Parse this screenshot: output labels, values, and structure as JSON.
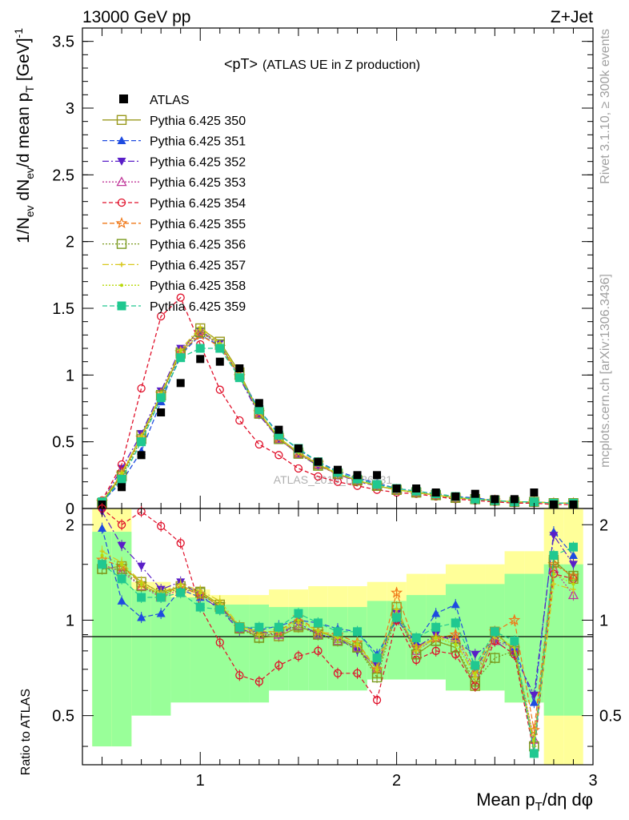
{
  "header": {
    "left": "13000 GeV pp",
    "right": "Z+Jet"
  },
  "side_labels": {
    "rivet": "Rivet 3.1.10, ≥ 300k events",
    "mcplots": "mcplots.cern.ch [arXiv:1306.3436]"
  },
  "chart_data": {
    "type": "line",
    "title": "<pT>",
    "subtitle": "(ATLAS UE in Z production)",
    "watermark": "ATLAS_2019_I1736531",
    "xlabel": "Mean p_T/dη dφ",
    "ylabel_top": "1/N_ev dN_ev/d mean p_T [GeV]^-1",
    "ylabel_bottom": "Ratio to ATLAS",
    "xlim": [
      0.4,
      3.0
    ],
    "ylim_top": [
      0,
      3.6
    ],
    "ylim_bottom": [
      0.35,
      2.25
    ],
    "x_ticks": [
      1,
      2,
      3
    ],
    "y_ticks_top": [
      0,
      0.5,
      1,
      1.5,
      2,
      2.5,
      3,
      3.5
    ],
    "y_ticks_bottom": [
      0.5,
      1,
      2
    ],
    "x": [
      0.5,
      0.6,
      0.7,
      0.8,
      0.9,
      1.0,
      1.1,
      1.2,
      1.3,
      1.4,
      1.5,
      1.6,
      1.7,
      1.8,
      1.9,
      2.0,
      2.1,
      2.2,
      2.3,
      2.4,
      2.5,
      2.6,
      2.7,
      2.8,
      2.9
    ],
    "data": {
      "name": "ATLAS",
      "values": [
        0.03,
        0.16,
        0.4,
        0.72,
        0.94,
        1.12,
        1.1,
        1.05,
        0.79,
        0.59,
        0.45,
        0.35,
        0.29,
        0.25,
        0.25,
        0.15,
        0.15,
        0.12,
        0.09,
        0.11,
        0.07,
        0.07,
        0.12,
        0.03,
        0.03
      ],
      "band_inner": [
        [
          0.4,
          1.9
        ],
        [
          0.5,
          1.25
        ],
        [
          0.55,
          1.18
        ],
        [
          0.55,
          1.12
        ],
        [
          0.6,
          1.1
        ],
        [
          0.6,
          1.1
        ],
        [
          0.65,
          1.15
        ],
        [
          0.65,
          1.2
        ],
        [
          0.6,
          1.3
        ],
        [
          0.55,
          1.4
        ],
        [
          0.5,
          1.5
        ]
      ],
      "band_outer": [
        [
          0.4,
          2.25
        ],
        [
          0.6,
          1.32
        ],
        [
          0.7,
          1.25
        ],
        [
          0.75,
          1.2
        ],
        [
          0.8,
          1.25
        ],
        [
          0.8,
          1.28
        ],
        [
          0.78,
          1.32
        ],
        [
          0.72,
          1.4
        ],
        [
          0.6,
          1.5
        ],
        [
          0.55,
          1.65
        ],
        [
          0.35,
          2.25
        ]
      ]
    },
    "series": [
      {
        "name": "Pythia 6.425 350",
        "color": "#9a9a1e",
        "marker": "square-open",
        "dash": "",
        "values": [
          0.04,
          0.25,
          0.55,
          0.85,
          1.17,
          1.35,
          1.25,
          1.02,
          0.72,
          0.53,
          0.42,
          0.33,
          0.26,
          0.21,
          0.17,
          0.14,
          0.12,
          0.1,
          0.08,
          0.07,
          0.06,
          0.05,
          0.05,
          0.04,
          0.04
        ],
        "ratio": [
          1.45,
          1.48,
          1.32,
          1.22,
          1.28,
          1.23,
          1.12,
          0.95,
          0.88,
          0.89,
          0.95,
          0.92,
          0.88,
          0.82,
          0.68,
          1.1,
          0.78,
          0.86,
          0.82,
          0.62,
          0.92,
          0.8,
          0.4,
          1.55,
          1.35
        ]
      },
      {
        "name": "Pythia 6.425 351",
        "color": "#1e4be0",
        "marker": "triangle-up",
        "dash": "6,3",
        "values": [
          0.05,
          0.2,
          0.43,
          0.8,
          1.15,
          1.3,
          1.22,
          1.0,
          0.74,
          0.56,
          0.44,
          0.35,
          0.28,
          0.23,
          0.19,
          0.15,
          0.13,
          0.11,
          0.09,
          0.08,
          0.06,
          0.05,
          0.05,
          0.04,
          0.04
        ],
        "ratio": [
          1.95,
          1.15,
          1.02,
          1.05,
          1.25,
          1.18,
          1.1,
          0.96,
          0.93,
          0.96,
          1.0,
          0.98,
          0.94,
          0.92,
          0.78,
          1.0,
          0.85,
          1.05,
          1.12,
          0.7,
          0.88,
          0.82,
          0.55,
          1.9,
          1.6
        ]
      },
      {
        "name": "Pythia 6.425 352",
        "color": "#5a1ec8",
        "marker": "triangle-down",
        "dash": "8,3,2,3",
        "values": [
          0.05,
          0.3,
          0.56,
          0.88,
          1.2,
          1.33,
          1.24,
          0.98,
          0.7,
          0.52,
          0.41,
          0.32,
          0.26,
          0.2,
          0.17,
          0.14,
          0.12,
          0.1,
          0.08,
          0.07,
          0.06,
          0.05,
          0.05,
          0.04,
          0.04
        ],
        "ratio": [
          2.2,
          1.72,
          1.48,
          1.25,
          1.32,
          1.2,
          1.08,
          0.93,
          0.92,
          0.9,
          0.98,
          0.9,
          0.88,
          0.8,
          0.72,
          1.05,
          0.82,
          0.9,
          0.86,
          0.78,
          0.86,
          0.78,
          0.58,
          1.85,
          1.5
        ]
      },
      {
        "name": "Pythia 6.425 353",
        "color": "#c0389a",
        "marker": "triangle-up-open",
        "dash": "2,2",
        "values": [
          0.04,
          0.24,
          0.52,
          0.84,
          1.18,
          1.33,
          1.22,
          1.0,
          0.71,
          0.52,
          0.41,
          0.33,
          0.25,
          0.21,
          0.17,
          0.14,
          0.12,
          0.1,
          0.08,
          0.07,
          0.06,
          0.05,
          0.05,
          0.04,
          0.04
        ],
        "ratio": [
          1.5,
          1.42,
          1.28,
          1.18,
          1.25,
          1.22,
          1.1,
          0.94,
          0.9,
          0.9,
          0.96,
          0.9,
          0.86,
          0.82,
          0.7,
          1.05,
          0.8,
          0.88,
          0.88,
          0.68,
          0.86,
          0.82,
          0.42,
          1.45,
          1.2
        ]
      },
      {
        "name": "Pythia 6.425 354",
        "color": "#e0102a",
        "marker": "circle-open",
        "dash": "5,3",
        "values": [
          0.06,
          0.33,
          0.9,
          1.44,
          1.58,
          1.23,
          0.89,
          0.66,
          0.48,
          0.4,
          0.3,
          0.24,
          0.2,
          0.17,
          0.14,
          0.12,
          0.11,
          0.09,
          0.07,
          0.06,
          0.05,
          0.04,
          0.04,
          0.03,
          0.03
        ],
        "ratio": [
          2.35,
          2.0,
          2.2,
          1.98,
          1.75,
          1.1,
          0.85,
          0.67,
          0.64,
          0.72,
          0.77,
          0.8,
          0.68,
          0.68,
          0.56,
          1.0,
          0.75,
          0.8,
          0.78,
          0.62,
          0.86,
          0.78,
          0.38,
          1.4,
          1.35
        ]
      },
      {
        "name": "Pythia 6.425 355",
        "color": "#f07818",
        "marker": "star-open",
        "dash": "6,3",
        "values": [
          0.05,
          0.26,
          0.53,
          0.86,
          1.17,
          1.3,
          1.21,
          0.99,
          0.72,
          0.53,
          0.42,
          0.34,
          0.26,
          0.21,
          0.17,
          0.14,
          0.12,
          0.1,
          0.08,
          0.07,
          0.06,
          0.05,
          0.05,
          0.04,
          0.04
        ],
        "ratio": [
          1.55,
          1.48,
          1.3,
          1.2,
          1.28,
          1.2,
          1.12,
          0.95,
          0.92,
          0.92,
          1.02,
          0.92,
          0.9,
          0.85,
          0.7,
          1.22,
          0.82,
          0.88,
          0.9,
          0.7,
          0.92,
          1.0,
          0.45,
          1.5,
          1.38
        ]
      },
      {
        "name": "Pythia 6.425 356",
        "color": "#7a9a1e",
        "marker": "square-open",
        "dash": "2,2",
        "values": [
          0.04,
          0.24,
          0.52,
          0.85,
          1.16,
          1.32,
          1.23,
          1.0,
          0.71,
          0.52,
          0.41,
          0.32,
          0.26,
          0.21,
          0.17,
          0.14,
          0.12,
          0.1,
          0.08,
          0.07,
          0.06,
          0.05,
          0.05,
          0.04,
          0.04
        ],
        "ratio": [
          1.45,
          1.45,
          1.28,
          1.2,
          1.26,
          1.22,
          1.1,
          0.94,
          0.88,
          0.92,
          0.96,
          0.9,
          0.86,
          0.82,
          0.66,
          1.05,
          0.78,
          0.86,
          0.82,
          0.64,
          0.76,
          0.8,
          0.4,
          1.52,
          1.38
        ]
      },
      {
        "name": "Pythia 6.425 357",
        "color": "#d8c81e",
        "marker": "tick",
        "dash": "8,3,2,3",
        "values": [
          0.05,
          0.27,
          0.54,
          0.86,
          1.19,
          1.36,
          1.24,
          1.01,
          0.72,
          0.53,
          0.42,
          0.33,
          0.26,
          0.21,
          0.17,
          0.14,
          0.12,
          0.1,
          0.08,
          0.07,
          0.06,
          0.05,
          0.05,
          0.04,
          0.04
        ],
        "ratio": [
          1.65,
          1.52,
          1.32,
          1.22,
          1.3,
          1.24,
          1.15,
          0.96,
          0.9,
          0.92,
          0.98,
          0.93,
          0.88,
          0.84,
          0.7,
          1.08,
          0.8,
          0.88,
          0.86,
          0.66,
          0.88,
          0.82,
          0.4,
          1.3,
          1.25
        ]
      },
      {
        "name": "Pythia 6.425 358",
        "color": "#b8d80a",
        "marker": "dot",
        "dash": "2,2",
        "values": [
          0.05,
          0.26,
          0.53,
          0.86,
          1.18,
          1.34,
          1.23,
          1.0,
          0.72,
          0.53,
          0.42,
          0.33,
          0.26,
          0.21,
          0.17,
          0.14,
          0.12,
          0.1,
          0.08,
          0.07,
          0.06,
          0.05,
          0.05,
          0.04,
          0.04
        ],
        "ratio": [
          1.6,
          1.5,
          1.3,
          1.2,
          1.28,
          1.22,
          1.12,
          0.96,
          0.92,
          0.92,
          1.0,
          0.92,
          0.88,
          0.84,
          0.7,
          1.05,
          0.82,
          0.88,
          0.84,
          0.68,
          0.9,
          0.82,
          0.42,
          1.4,
          1.3
        ]
      },
      {
        "name": "Pythia 6.425 359",
        "color": "#20c890",
        "marker": "square",
        "dash": "6,3",
        "values": [
          0.05,
          0.22,
          0.5,
          0.83,
          1.13,
          1.2,
          1.2,
          0.98,
          0.74,
          0.55,
          0.45,
          0.35,
          0.27,
          0.22,
          0.18,
          0.15,
          0.13,
          0.11,
          0.09,
          0.07,
          0.06,
          0.05,
          0.05,
          0.04,
          0.04
        ],
        "ratio": [
          1.5,
          1.35,
          1.18,
          1.18,
          1.22,
          1.1,
          1.08,
          0.95,
          0.95,
          0.95,
          1.05,
          0.98,
          0.92,
          0.92,
          0.76,
          1.02,
          0.88,
          0.95,
          0.98,
          0.72,
          0.92,
          0.86,
          0.38,
          1.6,
          1.7
        ]
      }
    ]
  }
}
